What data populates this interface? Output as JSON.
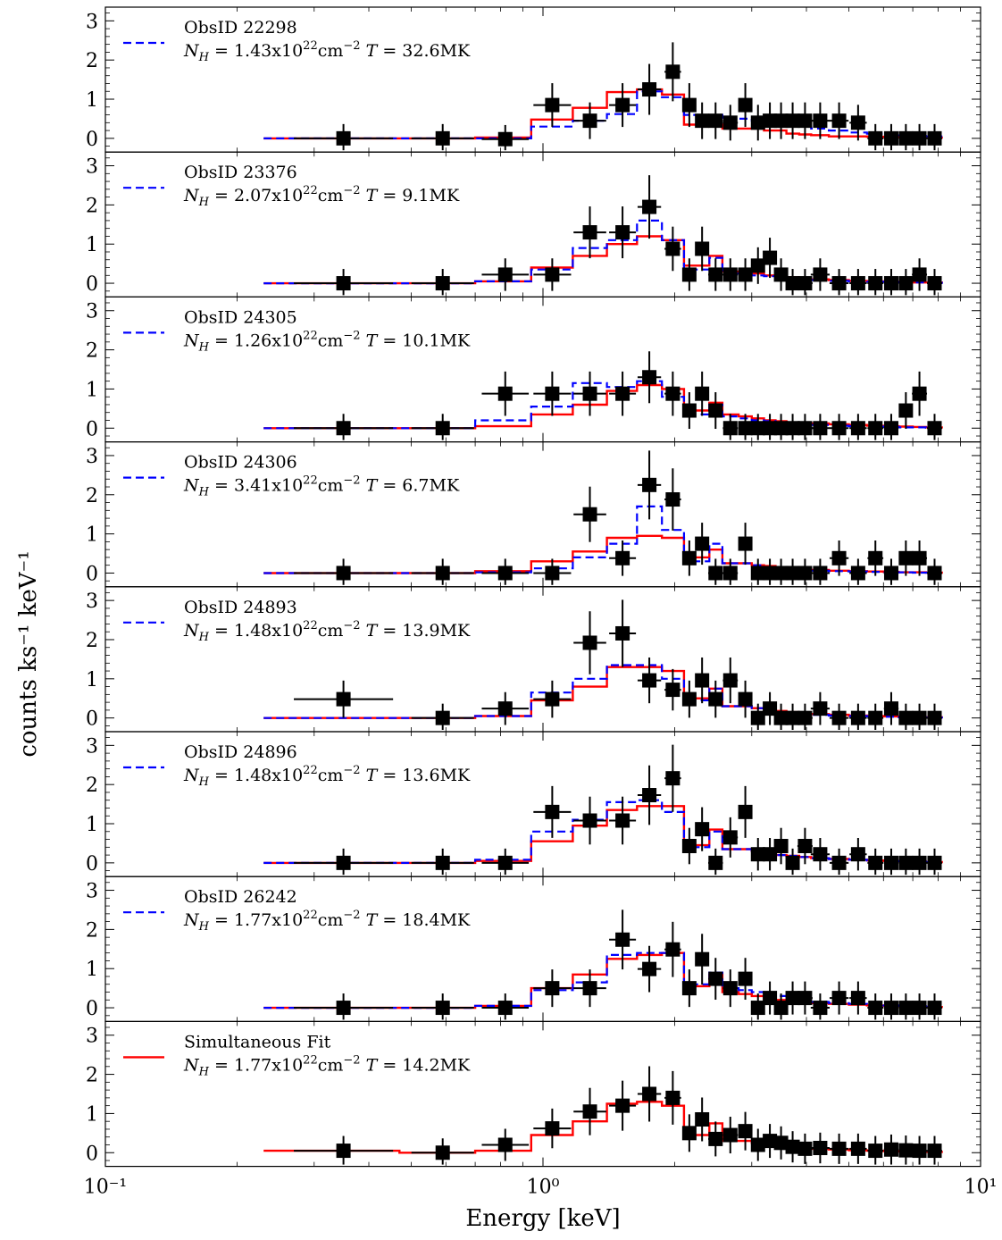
{
  "chart_data": {
    "type": "line",
    "xlabel": "Energy [keV]",
    "ylabel": "counts ks⁻¹ keV⁻¹",
    "xscale": "log",
    "xlim": [
      0.1,
      10
    ],
    "ylim": [
      -0.35,
      3.35
    ],
    "x_tick_labels": [
      {
        "value": 0.1,
        "label": "10⁻¹"
      },
      {
        "value": 1,
        "label": "10⁰"
      },
      {
        "value": 10,
        "label": "10¹"
      }
    ],
    "y_ticks": [
      0,
      1,
      2,
      3
    ],
    "model_bin_edges": [
      0.23,
      0.47,
      0.7,
      0.94,
      1.17,
      1.4,
      1.64,
      1.87,
      2.1,
      2.23,
      2.4,
      2.57,
      2.8,
      3.0,
      3.2,
      3.4,
      3.6,
      3.85,
      4.1,
      4.5,
      5.0,
      5.5,
      6.0,
      6.5,
      7.0,
      7.5,
      8.2
    ],
    "data_x": [
      0.35,
      0.59,
      0.82,
      1.05,
      1.28,
      1.52,
      1.75,
      1.98,
      2.16,
      2.31,
      2.48,
      2.68,
      2.9,
      3.1,
      3.3,
      3.5,
      3.72,
      3.97,
      4.3,
      4.75,
      5.25,
      5.75,
      6.25,
      6.75,
      7.25,
      7.85
    ],
    "panels": [
      {
        "obsid": "ObsID 22298",
        "params": "N_H = 1.43x10^22 cm^-2  T = 32.6MK",
        "nh_base": "1.43x10",
        "nh_exp": "22",
        "temperature": "32.6MK",
        "legend_series": "dashed",
        "data_y": [
          0,
          0,
          -0.02,
          0.85,
          0.45,
          0.85,
          1.25,
          1.7,
          0.85,
          0.45,
          0.45,
          0.4,
          0.85,
          0.4,
          0.45,
          0.45,
          0.45,
          0.45,
          0.45,
          0.45,
          0.4,
          0,
          0,
          0,
          0,
          0
        ],
        "model_red": [
          0,
          0,
          0.02,
          0.48,
          0.78,
          1.18,
          1.25,
          1.12,
          0.35,
          0.35,
          0.35,
          0.25,
          0.25,
          0.25,
          0.2,
          0.2,
          0.12,
          0.1,
          0.08,
          0.05,
          0.05,
          0.04,
          0.03,
          0.03,
          0.02,
          0.02
        ],
        "model_blue": [
          0,
          0,
          0,
          0.3,
          0.45,
          0.62,
          1.2,
          1.05,
          0.6,
          0.6,
          0.6,
          0.5,
          0.5,
          0.45,
          0.45,
          0.4,
          0.35,
          0.3,
          0.25,
          0.2,
          0.15,
          0.12,
          0.1,
          0.08,
          0.06,
          0.05
        ]
      },
      {
        "obsid": "ObsID 23376",
        "params": "N_H = 2.07x10^22 cm^-2  T = 9.1MK",
        "nh_base": "2.07x10",
        "nh_exp": "22",
        "temperature": "9.1MK",
        "legend_series": "dashed",
        "data_y": [
          0,
          0,
          0.22,
          0.22,
          1.3,
          1.3,
          1.95,
          0.88,
          0.22,
          0.88,
          0.22,
          0.22,
          0.22,
          0.45,
          0.65,
          0.22,
          0,
          0,
          0.22,
          0,
          0,
          0,
          0,
          0,
          0.22,
          0
        ],
        "model_red": [
          0,
          0,
          0.05,
          0.4,
          0.7,
          1.0,
          1.2,
          1.1,
          0.45,
          0.45,
          0.7,
          0.3,
          0.3,
          0.25,
          0.2,
          0.2,
          0.15,
          0.1,
          0.1,
          0.08,
          0.06,
          0.05,
          0.04,
          0.03,
          0.02,
          0.02
        ],
        "model_blue": [
          0,
          0,
          0.05,
          0.35,
          0.9,
          1.1,
          1.6,
          1.1,
          0.35,
          0.35,
          0.65,
          0.25,
          0.25,
          0.2,
          0.18,
          0.15,
          0.12,
          0.1,
          0.08,
          0.06,
          0.05,
          0.04,
          0.03,
          0.02,
          0.02,
          0.01
        ]
      },
      {
        "obsid": "ObsID 24305",
        "params": "N_H = 1.26x10^22 cm^-2  T = 10.1MK",
        "nh_base": "1.26x10",
        "nh_exp": "22",
        "temperature": "10.1MK",
        "legend_series": "dashed",
        "data_y": [
          0,
          0,
          0.88,
          0.88,
          0.88,
          0.88,
          1.3,
          0.88,
          0.45,
          0.88,
          0.45,
          0,
          0,
          0,
          0,
          0,
          0,
          0,
          0,
          0,
          0,
          0,
          0,
          0.45,
          0.88,
          0
        ],
        "model_red": [
          0,
          0,
          0.05,
          0.35,
          0.6,
          0.95,
          1.1,
          1.0,
          0.45,
          0.45,
          0.65,
          0.35,
          0.3,
          0.25,
          0.2,
          0.18,
          0.15,
          0.13,
          0.12,
          0.1,
          0.08,
          0.06,
          0.05,
          0.04,
          0.03,
          0.02
        ],
        "model_blue": [
          0,
          0,
          0.2,
          0.55,
          1.15,
          1.05,
          1.2,
          0.8,
          0.35,
          0.35,
          0.6,
          0.3,
          0.25,
          0.2,
          0.18,
          0.15,
          0.12,
          0.1,
          0.08,
          0.06,
          0.05,
          0.04,
          0.03,
          0.02,
          0.02,
          0.01
        ]
      },
      {
        "obsid": "ObsID 24306",
        "params": "N_H = 3.41x10^22 cm^-2  T = 6.7MK",
        "nh_base": "3.41x10",
        "nh_exp": "22",
        "temperature": "6.7MK",
        "legend_series": "dashed",
        "data_y": [
          0,
          0,
          0,
          0,
          1.5,
          0.38,
          2.25,
          1.88,
          0.38,
          0.75,
          0,
          0,
          0.75,
          0,
          0,
          0,
          0,
          0,
          0,
          0.38,
          0,
          0.38,
          0,
          0.38,
          0.38,
          0
        ],
        "model_red": [
          0,
          0,
          0.05,
          0.3,
          0.55,
          0.9,
          0.95,
          0.9,
          0.4,
          0.4,
          0.6,
          0.25,
          0.25,
          0.2,
          0.18,
          0.15,
          0.12,
          0.1,
          0.08,
          0.06,
          0.05,
          0.04,
          0.03,
          0.02,
          0.02,
          0.01
        ],
        "model_blue": [
          0,
          0,
          0.02,
          0.12,
          0.4,
          0.75,
          1.7,
          1.1,
          0.3,
          0.3,
          0.75,
          0.25,
          0.25,
          0.2,
          0.15,
          0.12,
          0.1,
          0.08,
          0.06,
          0.05,
          0.04,
          0.03,
          0.02,
          0.02,
          0.01,
          0.01
        ]
      },
      {
        "obsid": "ObsID 24893",
        "params": "N_H = 1.48x10^22 cm^-2  T = 13.9MK",
        "nh_base": "1.48x10",
        "nh_exp": "22",
        "temperature": "13.9MK",
        "legend_series": "dashed",
        "data_y": [
          0.48,
          0,
          0.24,
          0.48,
          1.92,
          2.16,
          0.96,
          0.72,
          0.48,
          0.96,
          0.48,
          0.96,
          0.48,
          0,
          0.24,
          0,
          0,
          0,
          0.24,
          0,
          0,
          0,
          0.24,
          0,
          0,
          0
        ],
        "model_red": [
          0,
          0,
          0.05,
          0.45,
          0.8,
          1.3,
          1.3,
          1.2,
          0.5,
          0.5,
          0.75,
          0.3,
          0.3,
          0.25,
          0.2,
          0.18,
          0.15,
          0.12,
          0.1,
          0.08,
          0.06,
          0.05,
          0.04,
          0.03,
          0.02,
          0.02
        ],
        "model_blue": [
          0,
          0,
          0.05,
          0.65,
          1.0,
          1.35,
          1.35,
          1.0,
          0.45,
          0.45,
          0.75,
          0.3,
          0.3,
          0.25,
          0.2,
          0.15,
          0.12,
          0.1,
          0.08,
          0.06,
          0.05,
          0.04,
          0.03,
          0.02,
          0.02,
          0.01
        ]
      },
      {
        "obsid": "ObsID 24896",
        "params": "N_H = 1.48x10^22 cm^-2  T = 13.6MK",
        "nh_base": "1.48x10",
        "nh_exp": "22",
        "temperature": "13.6MK",
        "legend_series": "dashed",
        "data_y": [
          0,
          0,
          0,
          1.3,
          1.08,
          1.08,
          1.73,
          2.16,
          0.43,
          0.86,
          0,
          0.65,
          1.3,
          0.22,
          0.22,
          0.43,
          0,
          0.43,
          0.22,
          0,
          0.22,
          0,
          0,
          0,
          0,
          0
        ],
        "model_red": [
          0,
          0,
          0.05,
          0.55,
          0.95,
          1.35,
          1.45,
          1.45,
          0.45,
          0.45,
          0.85,
          0.35,
          0.35,
          0.3,
          0.25,
          0.2,
          0.18,
          0.15,
          0.12,
          0.1,
          0.08,
          0.06,
          0.05,
          0.04,
          0.03,
          0.02
        ],
        "model_blue": [
          0,
          0,
          0.08,
          0.8,
          1.1,
          1.55,
          1.6,
          1.3,
          0.4,
          0.4,
          0.8,
          0.35,
          0.35,
          0.3,
          0.25,
          0.2,
          0.18,
          0.15,
          0.12,
          0.1,
          0.08,
          0.06,
          0.05,
          0.04,
          0.03,
          0.02
        ]
      },
      {
        "obsid": "ObsID 26242",
        "params": "N_H = 1.77x10^22 cm^-2  T = 18.4MK",
        "nh_base": "1.77x10",
        "nh_exp": "22",
        "temperature": "18.4MK",
        "legend_series": "dashed",
        "data_y": [
          0,
          0,
          0,
          0.5,
          0.5,
          1.74,
          0.99,
          1.49,
          0.5,
          1.24,
          0.74,
          0.5,
          0.74,
          0,
          0.25,
          0,
          0.25,
          0.25,
          0,
          0.25,
          0.25,
          0,
          0,
          0,
          0,
          0
        ],
        "model_red": [
          0,
          0,
          0.05,
          0.5,
          0.85,
          1.25,
          1.35,
          1.4,
          0.55,
          0.55,
          0.85,
          0.4,
          0.35,
          0.3,
          0.25,
          0.2,
          0.18,
          0.15,
          0.12,
          0.1,
          0.08,
          0.06,
          0.05,
          0.04,
          0.03,
          0.02
        ],
        "model_blue": [
          0,
          0,
          0.05,
          0.45,
          0.65,
          1.35,
          1.4,
          1.4,
          0.6,
          0.6,
          0.9,
          0.5,
          0.45,
          0.4,
          0.35,
          0.3,
          0.25,
          0.2,
          0.15,
          0.12,
          0.1,
          0.08,
          0.06,
          0.05,
          0.04,
          0.03
        ]
      },
      {
        "obsid": "Simultaneous Fit",
        "params": "N_H = 1.77x10^22 cm^-2  T = 14.2MK",
        "nh_base": "1.77x10",
        "nh_exp": "22",
        "temperature": "14.2MK",
        "legend_series": "solid",
        "data_y": [
          0.05,
          0,
          0.2,
          0.62,
          1.05,
          1.2,
          1.5,
          1.4,
          0.5,
          0.85,
          0.35,
          0.45,
          0.55,
          0.2,
          0.3,
          0.25,
          0.15,
          0.1,
          0.12,
          0.1,
          0.1,
          0.05,
          0.08,
          0.06,
          0.05,
          0.05
        ],
        "model_red": [
          0.05,
          0,
          0.05,
          0.45,
          0.8,
          1.25,
          1.3,
          1.2,
          0.45,
          0.45,
          0.75,
          0.3,
          0.3,
          0.25,
          0.2,
          0.18,
          0.15,
          0.12,
          0.1,
          0.08,
          0.06,
          0.05,
          0.04,
          0.03,
          0.02,
          0.02
        ],
        "model_blue": null
      }
    ]
  },
  "colors": {
    "model_red": "#ff0000",
    "model_blue": "#0000ff",
    "data": "#000000"
  }
}
